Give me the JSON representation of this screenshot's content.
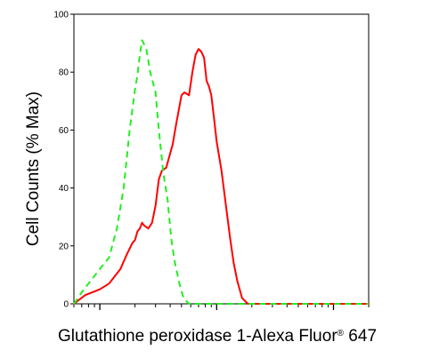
{
  "chart_data": {
    "type": "line",
    "title": "",
    "xlabel_main": "Glutathione peroxidase 1-Alexa Fluor",
    "xlabel_reg": "®",
    "xlabel_tail": " 647",
    "ylabel": "Cell Counts (% Max)",
    "ylim": [
      0,
      100
    ],
    "y_ticks": [
      "0",
      "20",
      "40",
      "60",
      "80",
      "100"
    ],
    "x_scale": "log",
    "x_range": [
      0.06,
      20
    ],
    "x_major_ticks": [
      0.1,
      1,
      10
    ],
    "grid": false,
    "legend": "none",
    "series": [
      {
        "color": "#ff0000",
        "style": "solid",
        "points": [
          [
            0.06,
            0
          ],
          [
            0.075,
            3
          ],
          [
            0.1,
            5
          ],
          [
            0.12,
            7
          ],
          [
            0.15,
            12
          ],
          [
            0.17,
            17
          ],
          [
            0.19,
            21
          ],
          [
            0.2,
            22
          ],
          [
            0.21,
            25
          ],
          [
            0.22,
            26
          ],
          [
            0.23,
            28
          ],
          [
            0.24,
            27
          ],
          [
            0.26,
            26
          ],
          [
            0.28,
            28
          ],
          [
            0.3,
            34
          ],
          [
            0.32,
            43
          ],
          [
            0.34,
            46
          ],
          [
            0.37,
            47
          ],
          [
            0.42,
            55
          ],
          [
            0.45,
            62
          ],
          [
            0.5,
            72
          ],
          [
            0.53,
            73
          ],
          [
            0.58,
            72
          ],
          [
            0.62,
            80
          ],
          [
            0.66,
            86
          ],
          [
            0.7,
            88
          ],
          [
            0.74,
            87
          ],
          [
            0.78,
            85
          ],
          [
            0.82,
            77
          ],
          [
            0.86,
            75
          ],
          [
            0.9,
            72
          ],
          [
            0.95,
            64
          ],
          [
            1.0,
            56
          ],
          [
            1.1,
            46
          ],
          [
            1.2,
            34
          ],
          [
            1.3,
            23
          ],
          [
            1.4,
            14
          ],
          [
            1.5,
            8
          ],
          [
            1.65,
            2
          ],
          [
            1.85,
            0
          ],
          [
            3.0,
            0
          ],
          [
            20,
            0
          ]
        ]
      },
      {
        "color": "#22ee22",
        "style": "dashed",
        "points": [
          [
            0.06,
            0
          ],
          [
            0.065,
            2
          ],
          [
            0.07,
            4
          ],
          [
            0.08,
            7
          ],
          [
            0.1,
            12
          ],
          [
            0.12,
            16
          ],
          [
            0.14,
            26
          ],
          [
            0.16,
            40
          ],
          [
            0.18,
            60
          ],
          [
            0.2,
            74
          ],
          [
            0.21,
            79
          ],
          [
            0.22,
            86
          ],
          [
            0.23,
            91
          ],
          [
            0.25,
            88
          ],
          [
            0.27,
            80
          ],
          [
            0.3,
            73
          ],
          [
            0.32,
            60
          ],
          [
            0.35,
            45
          ],
          [
            0.38,
            36
          ],
          [
            0.41,
            22
          ],
          [
            0.44,
            14
          ],
          [
            0.48,
            7
          ],
          [
            0.52,
            2
          ],
          [
            0.58,
            0
          ],
          [
            20,
            0
          ]
        ]
      }
    ]
  }
}
